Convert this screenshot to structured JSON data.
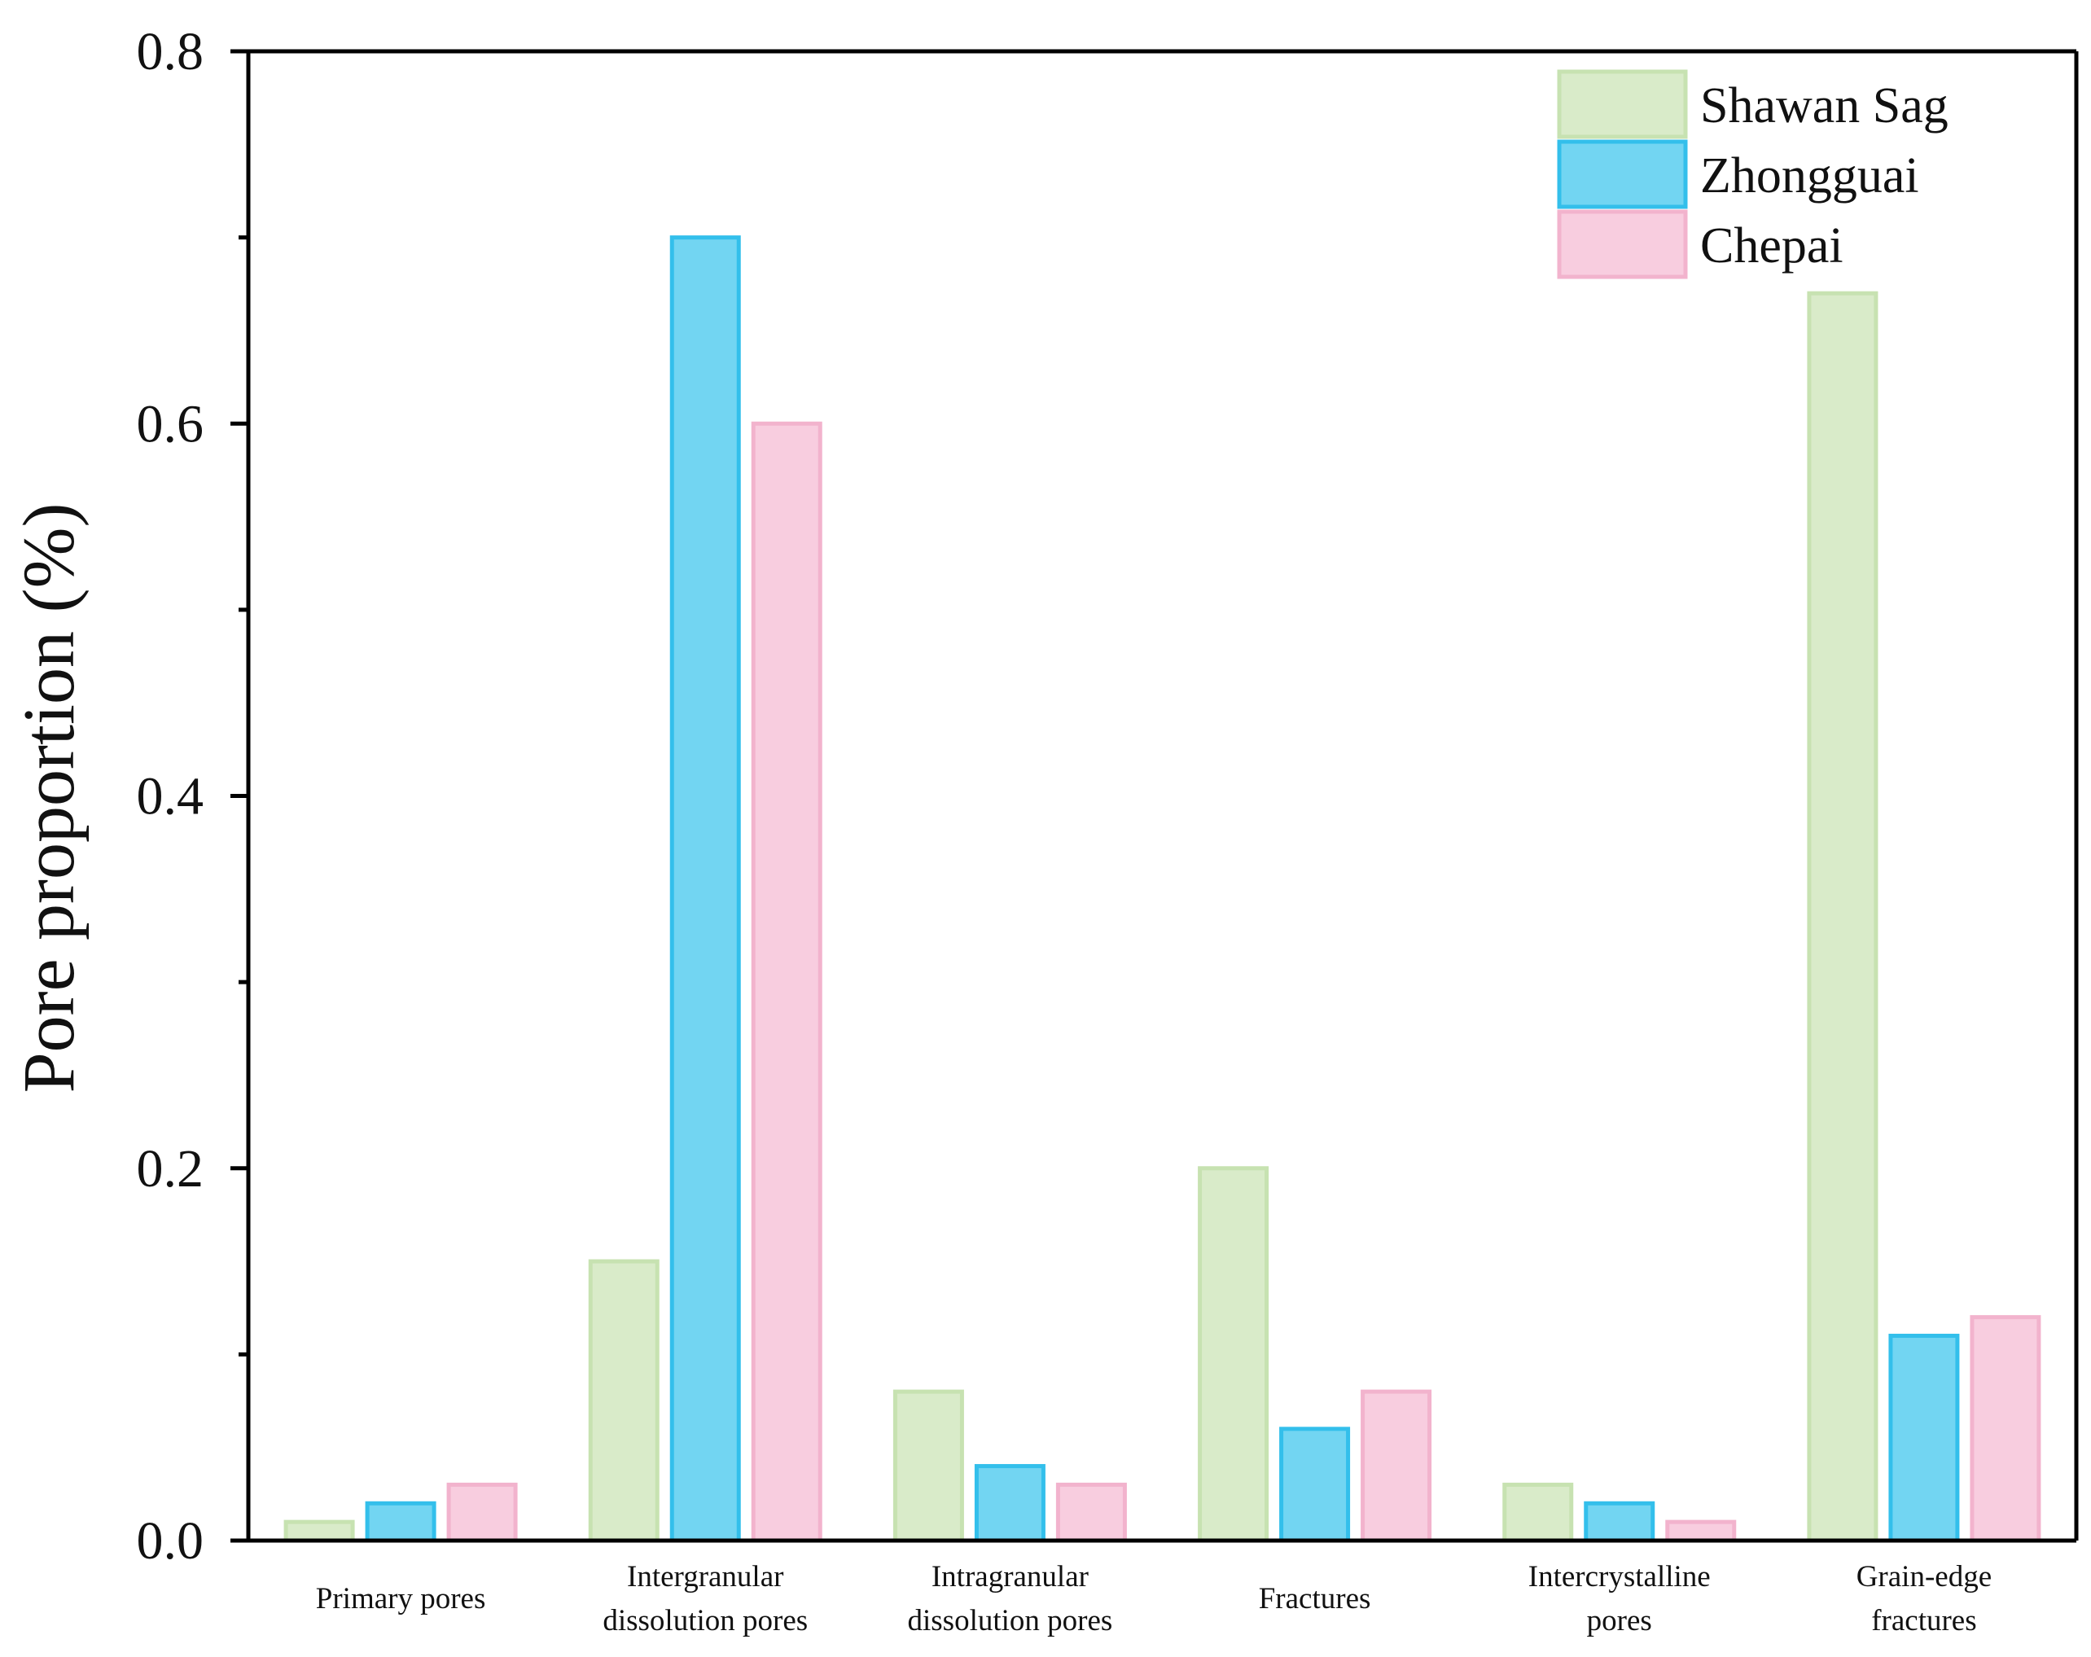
{
  "chart_data": {
    "type": "bar",
    "title": "",
    "xlabel": "",
    "ylabel": "Pore proportion (%)",
    "ylim": [
      0,
      0.8
    ],
    "yticks": [
      "0.0",
      "0.2",
      "0.4",
      "0.6",
      "0.8"
    ],
    "grid": false,
    "legend_position": "top-right",
    "categories": [
      [
        "Primary pores"
      ],
      [
        "Intergranular",
        "dissolution pores"
      ],
      [
        "Intragranular",
        "dissolution pores"
      ],
      [
        "Fractures"
      ],
      [
        "Intercrystalline",
        "pores"
      ],
      [
        "Grain-edge",
        "fractures"
      ]
    ],
    "series": [
      {
        "name": "Shawan Sag",
        "color": "#d9ebc9",
        "edge": "#c7e2b1",
        "values": [
          0.01,
          0.15,
          0.08,
          0.2,
          0.03,
          0.67
        ]
      },
      {
        "name": "Zhongguai",
        "color": "#72d5f2",
        "edge": "#33bfeb",
        "values": [
          0.02,
          0.7,
          0.04,
          0.06,
          0.02,
          0.11
        ]
      },
      {
        "name": "Chepai",
        "color": "#f8cddf",
        "edge": "#f2b3cd",
        "values": [
          0.03,
          0.6,
          0.03,
          0.08,
          0.01,
          0.12
        ]
      }
    ]
  }
}
